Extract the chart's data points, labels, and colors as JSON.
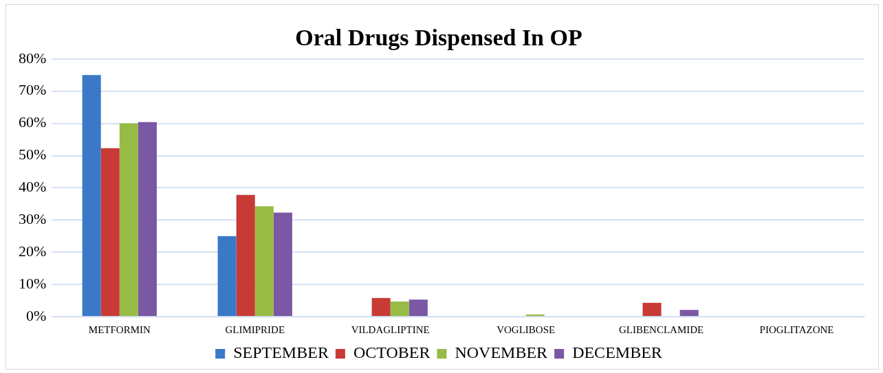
{
  "chart_data": {
    "type": "bar",
    "title": "Oral Drugs Dispensed In OP",
    "categories": [
      "METFORMIN",
      "GLIMIPRIDE",
      "VILDAGLIPTINE",
      "VOGLIBOSE",
      "GLIBENCLAMIDE",
      "PIOGLITAZONE"
    ],
    "series": [
      {
        "name": "SEPTEMBER",
        "color": "#3a78c8",
        "values": [
          75,
          25,
          0,
          0,
          0,
          0
        ]
      },
      {
        "name": "OCTOBER",
        "color": "#c83a36",
        "values": [
          52.3,
          37.8,
          5.8,
          0,
          4.3,
          0
        ]
      },
      {
        "name": "NOVEMBER",
        "color": "#98bb45",
        "values": [
          60,
          34.3,
          4.7,
          0.7,
          0,
          0
        ]
      },
      {
        "name": "DECEMBER",
        "color": "#7a58a4",
        "values": [
          60.4,
          32.3,
          5.3,
          0,
          2.1,
          0
        ]
      }
    ],
    "ylim": [
      0,
      80
    ],
    "yticks": [
      {
        "value": 0,
        "label": "0%"
      },
      {
        "value": 10,
        "label": "10%"
      },
      {
        "value": 20,
        "label": "20%"
      },
      {
        "value": 30,
        "label": "30%"
      },
      {
        "value": 40,
        "label": "40%"
      },
      {
        "value": 50,
        "label": "50%"
      },
      {
        "value": 60,
        "label": "60%"
      },
      {
        "value": 70,
        "label": "70%"
      },
      {
        "value": 80,
        "label": "80%"
      }
    ],
    "grid": "y",
    "legend": "bottom"
  }
}
